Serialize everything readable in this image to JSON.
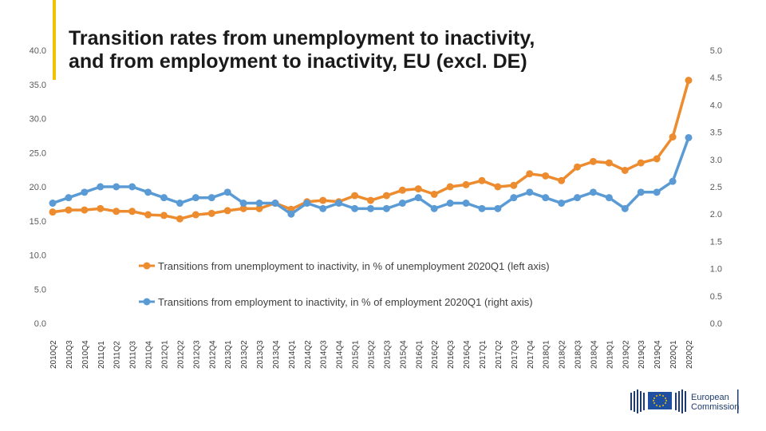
{
  "title_line1": "Transition rates from unemployment to inactivity,",
  "title_line2": "and from employment to inactivity, EU (excl. DE)",
  "logo": {
    "line1": "European",
    "line2": "Commission"
  },
  "chart_data": {
    "type": "line",
    "categories": [
      "2010Q2",
      "2010Q3",
      "2010Q4",
      "2011Q1",
      "2011Q2",
      "2011Q3",
      "2011Q4",
      "2012Q1",
      "2012Q2",
      "2012Q3",
      "2012Q4",
      "2013Q1",
      "2013Q2",
      "2013Q3",
      "2013Q4",
      "2014Q1",
      "2014Q2",
      "2014Q3",
      "2014Q4",
      "2015Q1",
      "2015Q2",
      "2015Q3",
      "2015Q4",
      "2016Q1",
      "2016Q2",
      "2016Q3",
      "2016Q4",
      "2017Q1",
      "2017Q2",
      "2017Q3",
      "2017Q4",
      "2018Q1",
      "2018Q2",
      "2018Q3",
      "2018Q4",
      "2019Q1",
      "2019Q2",
      "2019Q3",
      "2019Q4",
      "2020Q1",
      "2020Q2"
    ],
    "left_axis": {
      "min": 0,
      "max": 40,
      "ticks": [
        "0.0",
        "5.0",
        "10.0",
        "15.0",
        "20.0",
        "25.0",
        "30.0",
        "35.0",
        "40.0"
      ]
    },
    "right_axis": {
      "min": 0,
      "max": 5,
      "ticks": [
        "0.0",
        "0.5",
        "1.0",
        "1.5",
        "2.0",
        "2.5",
        "3.0",
        "3.5",
        "4.0",
        "4.5",
        "5.0"
      ]
    },
    "series": [
      {
        "name": "Transitions from unemployment to inactivity, in % of unemployment 2020Q1 (left axis)",
        "axis": "left",
        "color": "#ED8B2F",
        "values": [
          16.3,
          16.6,
          16.6,
          16.8,
          16.4,
          16.4,
          15.9,
          15.8,
          15.3,
          15.9,
          16.1,
          16.5,
          16.8,
          16.8,
          17.6,
          16.7,
          17.8,
          18.0,
          17.8,
          18.7,
          18.0,
          18.7,
          19.5,
          19.7,
          18.9,
          20.0,
          20.3,
          20.9,
          20.0,
          20.2,
          21.9,
          21.6,
          20.9,
          22.9,
          23.7,
          23.5,
          22.4,
          23.5,
          24.1,
          27.3,
          35.6
        ]
      },
      {
        "name": "Transitions from employment to inactivity, in % of employment 2020Q1 (right axis)",
        "axis": "right",
        "color": "#5B9BD5",
        "values": [
          2.2,
          2.3,
          2.4,
          2.5,
          2.5,
          2.5,
          2.4,
          2.3,
          2.2,
          2.3,
          2.3,
          2.4,
          2.2,
          2.2,
          2.2,
          2.0,
          2.2,
          2.1,
          2.2,
          2.1,
          2.1,
          2.1,
          2.2,
          2.3,
          2.1,
          2.2,
          2.2,
          2.1,
          2.1,
          2.3,
          2.4,
          2.3,
          2.2,
          2.3,
          2.4,
          2.3,
          2.1,
          2.4,
          2.4,
          2.6,
          3.4
        ]
      }
    ]
  }
}
